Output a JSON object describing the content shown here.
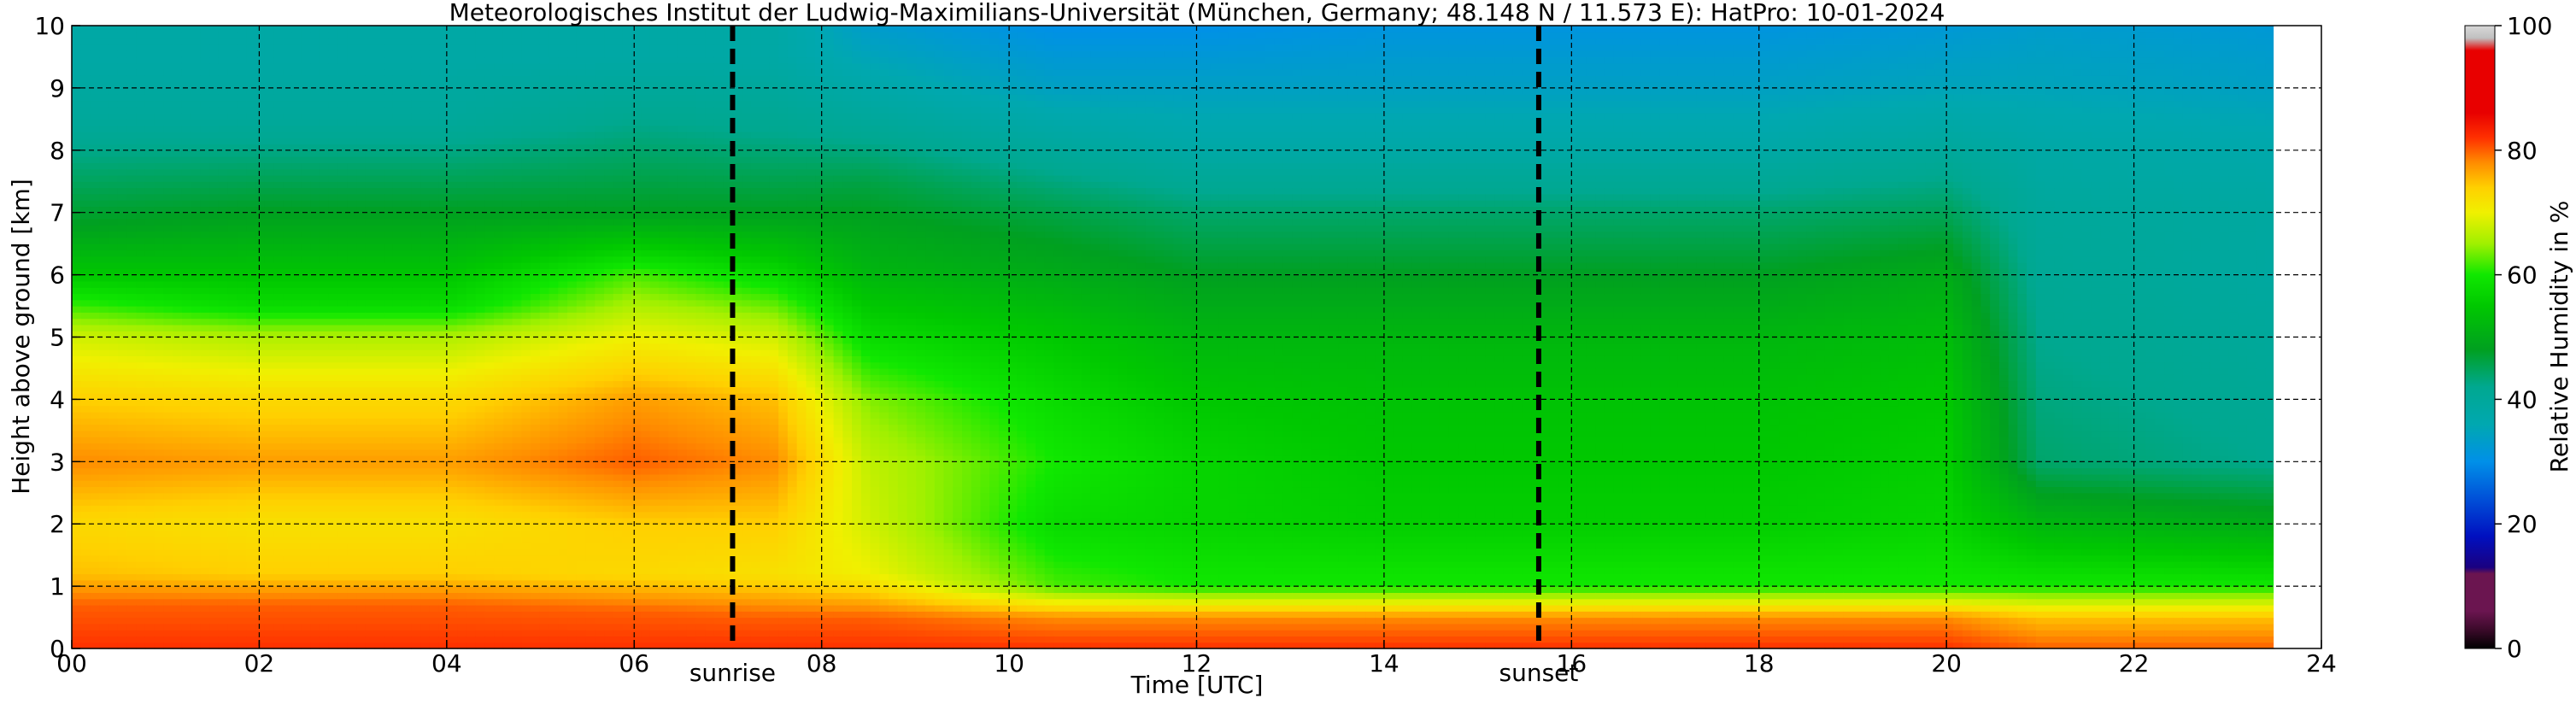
{
  "chart_data": {
    "type": "heatmap",
    "title": "Meteorologisches Institut der Ludwig-Maximilians-Universität (München, Germany; 48.148 N / 11.573 E):    HatPro: 10-01-2024",
    "xlabel": "Time [UTC]",
    "ylabel": "Height above ground [km]",
    "xlim": [
      0,
      24
    ],
    "ylim": [
      0,
      10
    ],
    "x_ticks": [
      "00",
      "02",
      "04",
      "06",
      "08",
      "10",
      "12",
      "14",
      "16",
      "18",
      "20",
      "22",
      "24"
    ],
    "y_ticks": [
      "0",
      "1",
      "2",
      "3",
      "4",
      "5",
      "6",
      "7",
      "8",
      "9",
      "10"
    ],
    "grid": true,
    "markers": [
      {
        "label": "sunrise",
        "time": 7.05
      },
      {
        "label": "sunset",
        "time": 15.65
      }
    ],
    "data_end_time": 23.5,
    "colorbar": {
      "label": "Relative Humidity in %",
      "range": [
        0,
        100
      ],
      "ticks": [
        "0",
        "20",
        "40",
        "60",
        "80",
        "100"
      ]
    },
    "value_unit": "%",
    "rh_profiles": [
      {
        "time": 0.0,
        "heights": [
          0,
          0.7,
          1.2,
          2.0,
          3.0,
          4.0,
          5.0,
          6.0,
          6.8,
          8.5,
          9.5,
          10
        ],
        "rh": [
          82,
          80,
          75,
          73,
          78,
          74,
          68,
          55,
          48,
          40,
          38,
          38
        ]
      },
      {
        "time": 2.0,
        "heights": [
          0,
          0.7,
          1.2,
          2.0,
          3.0,
          4.0,
          5.0,
          5.5,
          7.0,
          8.5,
          9.5,
          10
        ],
        "rh": [
          82,
          80,
          74,
          72,
          77,
          73,
          66,
          58,
          48,
          40,
          38,
          38
        ]
      },
      {
        "time": 4.0,
        "heights": [
          0,
          0.7,
          1.2,
          2.0,
          3.0,
          4.0,
          5.0,
          5.5,
          7.0,
          8.5,
          9.5,
          10
        ],
        "rh": [
          82,
          80,
          74,
          72,
          77,
          73,
          66,
          58,
          48,
          40,
          38,
          38
        ]
      },
      {
        "time": 6.0,
        "heights": [
          0,
          0.6,
          1.2,
          2.0,
          3.0,
          4.0,
          5.0,
          6.0,
          7.0,
          8.5,
          9.5,
          10
        ],
        "rh": [
          82,
          80,
          73,
          74,
          80,
          77,
          70,
          62,
          48,
          42,
          38,
          38
        ]
      },
      {
        "time": 7.5,
        "heights": [
          0,
          0.5,
          1.2,
          2.0,
          3.0,
          4.0,
          5.0,
          6.0,
          7.0,
          8.3,
          9.5,
          10
        ],
        "rh": [
          82,
          80,
          72,
          74,
          78,
          75,
          68,
          58,
          48,
          42,
          38,
          38
        ]
      },
      {
        "time": 8.5,
        "heights": [
          0,
          0.5,
          1.2,
          2.0,
          3.0,
          4.0,
          5.0,
          6.0,
          7.5,
          8.5,
          9.5,
          10
        ],
        "rh": [
          82,
          80,
          70,
          68,
          67,
          64,
          58,
          52,
          46,
          40,
          35,
          33
        ]
      },
      {
        "time": 10.5,
        "heights": [
          0,
          0.5,
          1.0,
          2.0,
          3.0,
          4.0,
          5.0,
          6.0,
          7.0,
          8.0,
          9.0,
          10
        ],
        "rh": [
          82,
          78,
          62,
          58,
          60,
          58,
          55,
          50,
          46,
          40,
          34,
          30
        ]
      },
      {
        "time": 12.0,
        "heights": [
          0,
          0.5,
          1.0,
          2.0,
          3.0,
          4.0,
          5.0,
          6.0,
          7.0,
          8.0,
          9.0,
          10
        ],
        "rh": [
          82,
          78,
          60,
          57,
          57,
          55,
          52,
          48,
          44,
          38,
          34,
          30
        ]
      },
      {
        "time": 14.0,
        "heights": [
          0,
          0.5,
          1.0,
          2.0,
          3.0,
          4.0,
          5.0,
          6.0,
          7.0,
          8.0,
          9.0,
          10
        ],
        "rh": [
          82,
          78,
          60,
          56,
          55,
          54,
          52,
          48,
          44,
          38,
          34,
          31
        ]
      },
      {
        "time": 16.0,
        "heights": [
          0,
          0.5,
          1.0,
          2.0,
          3.0,
          4.0,
          5.0,
          6.0,
          7.0,
          8.0,
          9.0,
          10
        ],
        "rh": [
          82,
          78,
          60,
          56,
          55,
          54,
          52,
          48,
          44,
          38,
          34,
          31
        ]
      },
      {
        "time": 18.0,
        "heights": [
          0,
          0.5,
          1.0,
          2.0,
          3.0,
          4.0,
          5.0,
          6.0,
          7.0,
          8.0,
          9.0,
          10
        ],
        "rh": [
          82,
          78,
          60,
          56,
          55,
          54,
          52,
          48,
          44,
          38,
          34,
          31
        ]
      },
      {
        "time": 20.0,
        "heights": [
          0,
          0.5,
          1.0,
          2.0,
          3.0,
          4.0,
          5.0,
          6.0,
          7.0,
          8.0,
          9.0,
          10
        ],
        "rh": [
          82,
          78,
          60,
          57,
          56,
          55,
          53,
          50,
          45,
          40,
          35,
          32
        ]
      },
      {
        "time": 21.0,
        "heights": [
          0,
          0.5,
          1.0,
          2.0,
          3.0,
          4.0,
          5.0,
          6.0,
          7.0,
          8.0,
          9.0,
          10
        ],
        "rh": [
          80,
          75,
          60,
          52,
          44,
          43,
          42,
          41,
          40,
          38,
          35,
          33
        ]
      },
      {
        "time": 23.5,
        "heights": [
          0,
          0.5,
          1.0,
          2.0,
          3.0,
          4.0,
          5.0,
          6.0,
          7.0,
          8.0,
          9.0,
          10
        ],
        "rh": [
          80,
          75,
          60,
          50,
          42,
          41,
          40,
          39,
          39,
          37,
          34,
          32
        ]
      }
    ],
    "colormap": [
      {
        "value": 0,
        "color": "#000000"
      },
      {
        "value": 3,
        "color": "#3b0a2a"
      },
      {
        "value": 6,
        "color": "#6b1550"
      },
      {
        "value": 12,
        "color": "#6b1550"
      },
      {
        "value": 13,
        "color": "#1a0080"
      },
      {
        "value": 18,
        "color": "#0010c0"
      },
      {
        "value": 24,
        "color": "#0050d8"
      },
      {
        "value": 30,
        "color": "#0090e8"
      },
      {
        "value": 36,
        "color": "#00a8b0"
      },
      {
        "value": 42,
        "color": "#00a890"
      },
      {
        "value": 48,
        "color": "#00a020"
      },
      {
        "value": 55,
        "color": "#00c800"
      },
      {
        "value": 60,
        "color": "#10e800"
      },
      {
        "value": 65,
        "color": "#a0f000"
      },
      {
        "value": 70,
        "color": "#f0f000"
      },
      {
        "value": 74,
        "color": "#ffd000"
      },
      {
        "value": 78,
        "color": "#ff8c00"
      },
      {
        "value": 82,
        "color": "#ff3000"
      },
      {
        "value": 86,
        "color": "#e80000"
      },
      {
        "value": 96,
        "color": "#e80000"
      },
      {
        "value": 98,
        "color": "#c0c0c0"
      },
      {
        "value": 100,
        "color": "#d8d8d8"
      }
    ]
  }
}
